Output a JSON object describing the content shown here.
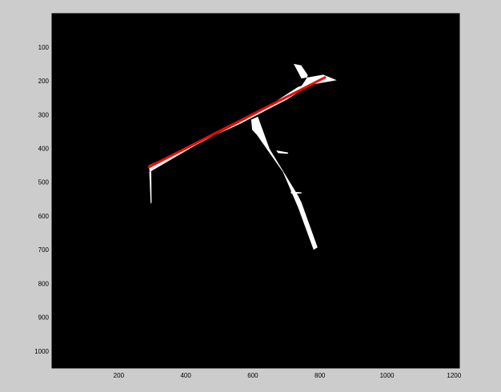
{
  "chart_data": {
    "type": "image",
    "title": "",
    "xlabel": "",
    "ylabel": "",
    "xlim": [
      1,
      1216
    ],
    "ylim": [
      1,
      1050
    ],
    "y_reversed": true,
    "xticks": [
      200,
      400,
      600,
      800,
      1000,
      1200
    ],
    "yticks": [
      100,
      200,
      300,
      400,
      500,
      600,
      700,
      800,
      900,
      1000
    ],
    "background_color": "#000000",
    "frame_color": "#cccccc",
    "fitted_line": {
      "color": "#ff0000",
      "x": [
        290,
        815
      ],
      "y": [
        455,
        190
      ]
    },
    "white_regions": [
      {
        "name": "upper-branch",
        "polygon_x": [
          290,
          560,
          700,
          770,
          850,
          810,
          745,
          722,
          744,
          764,
          760,
          745,
          735,
          610,
          430,
          292
        ],
        "polygon_y": [
          450,
          328,
          256,
          212,
          198,
          182,
          193,
          150,
          154,
          183,
          193,
          215,
          218,
          298,
          390,
          470
        ]
      },
      {
        "name": "lower-branch",
        "polygon_x": [
          595,
          615,
          650,
          735,
          745,
          793,
          781,
          735,
          690,
          612,
          598
        ],
        "polygon_y": [
          315,
          306,
          402,
          540,
          560,
          693,
          700,
          575,
          470,
          360,
          345
        ]
      },
      {
        "name": "left-stub",
        "polygon_x": [
          291,
          297,
          298,
          295,
          293
        ],
        "polygon_y": [
          470,
          468,
          560,
          564,
          510
        ]
      },
      {
        "name": "twig-1",
        "polygon_x": [
          670,
          705,
          705,
          675
        ],
        "polygon_y": [
          406,
          412,
          416,
          414
        ]
      },
      {
        "name": "twig-2",
        "polygon_x": [
          712,
          745,
          745,
          715
        ],
        "polygon_y": [
          528,
          530,
          533,
          534
        ]
      },
      {
        "name": "twig-3",
        "polygon_x": [
          742,
          756,
          757,
          745
        ],
        "polygon_y": [
          590,
          592,
          595,
          596
        ]
      }
    ]
  }
}
